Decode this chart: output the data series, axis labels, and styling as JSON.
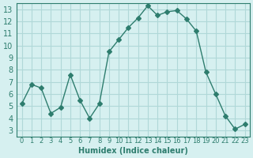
{
  "x": [
    0,
    1,
    2,
    3,
    4,
    5,
    6,
    7,
    8,
    9,
    10,
    11,
    12,
    13,
    14,
    15,
    16,
    17,
    18,
    19,
    20,
    21,
    22,
    23
  ],
  "y": [
    5.2,
    6.8,
    6.5,
    4.4,
    4.9,
    7.6,
    5.5,
    4.0,
    5.2,
    9.5,
    10.5,
    11.5,
    12.3,
    13.3,
    12.5,
    12.8,
    12.9,
    12.2,
    11.2,
    7.8,
    6.0,
    4.2,
    3.1,
    3.5
  ],
  "line_color": "#2e7d6e",
  "marker": "D",
  "marker_size": 3,
  "bg_color": "#d6f0f0",
  "grid_color": "#b0d8d8",
  "xlabel": "Humidex (Indice chaleur)",
  "xlim": [
    -0.5,
    23.5
  ],
  "ylim": [
    2.5,
    13.5
  ],
  "yticks": [
    3,
    4,
    5,
    6,
    7,
    8,
    9,
    10,
    11,
    12,
    13
  ],
  "xtick_labels": [
    "0",
    "1",
    "2",
    "3",
    "4",
    "5",
    "6",
    "7",
    "8",
    "9",
    "10",
    "11",
    "12",
    "13",
    "14",
    "15",
    "16",
    "17",
    "18",
    "19",
    "20",
    "21",
    "22",
    "23"
  ],
  "tick_color": "#2e7d6e",
  "axis_color": "#2e7d6e",
  "label_color": "#2e7d6e"
}
